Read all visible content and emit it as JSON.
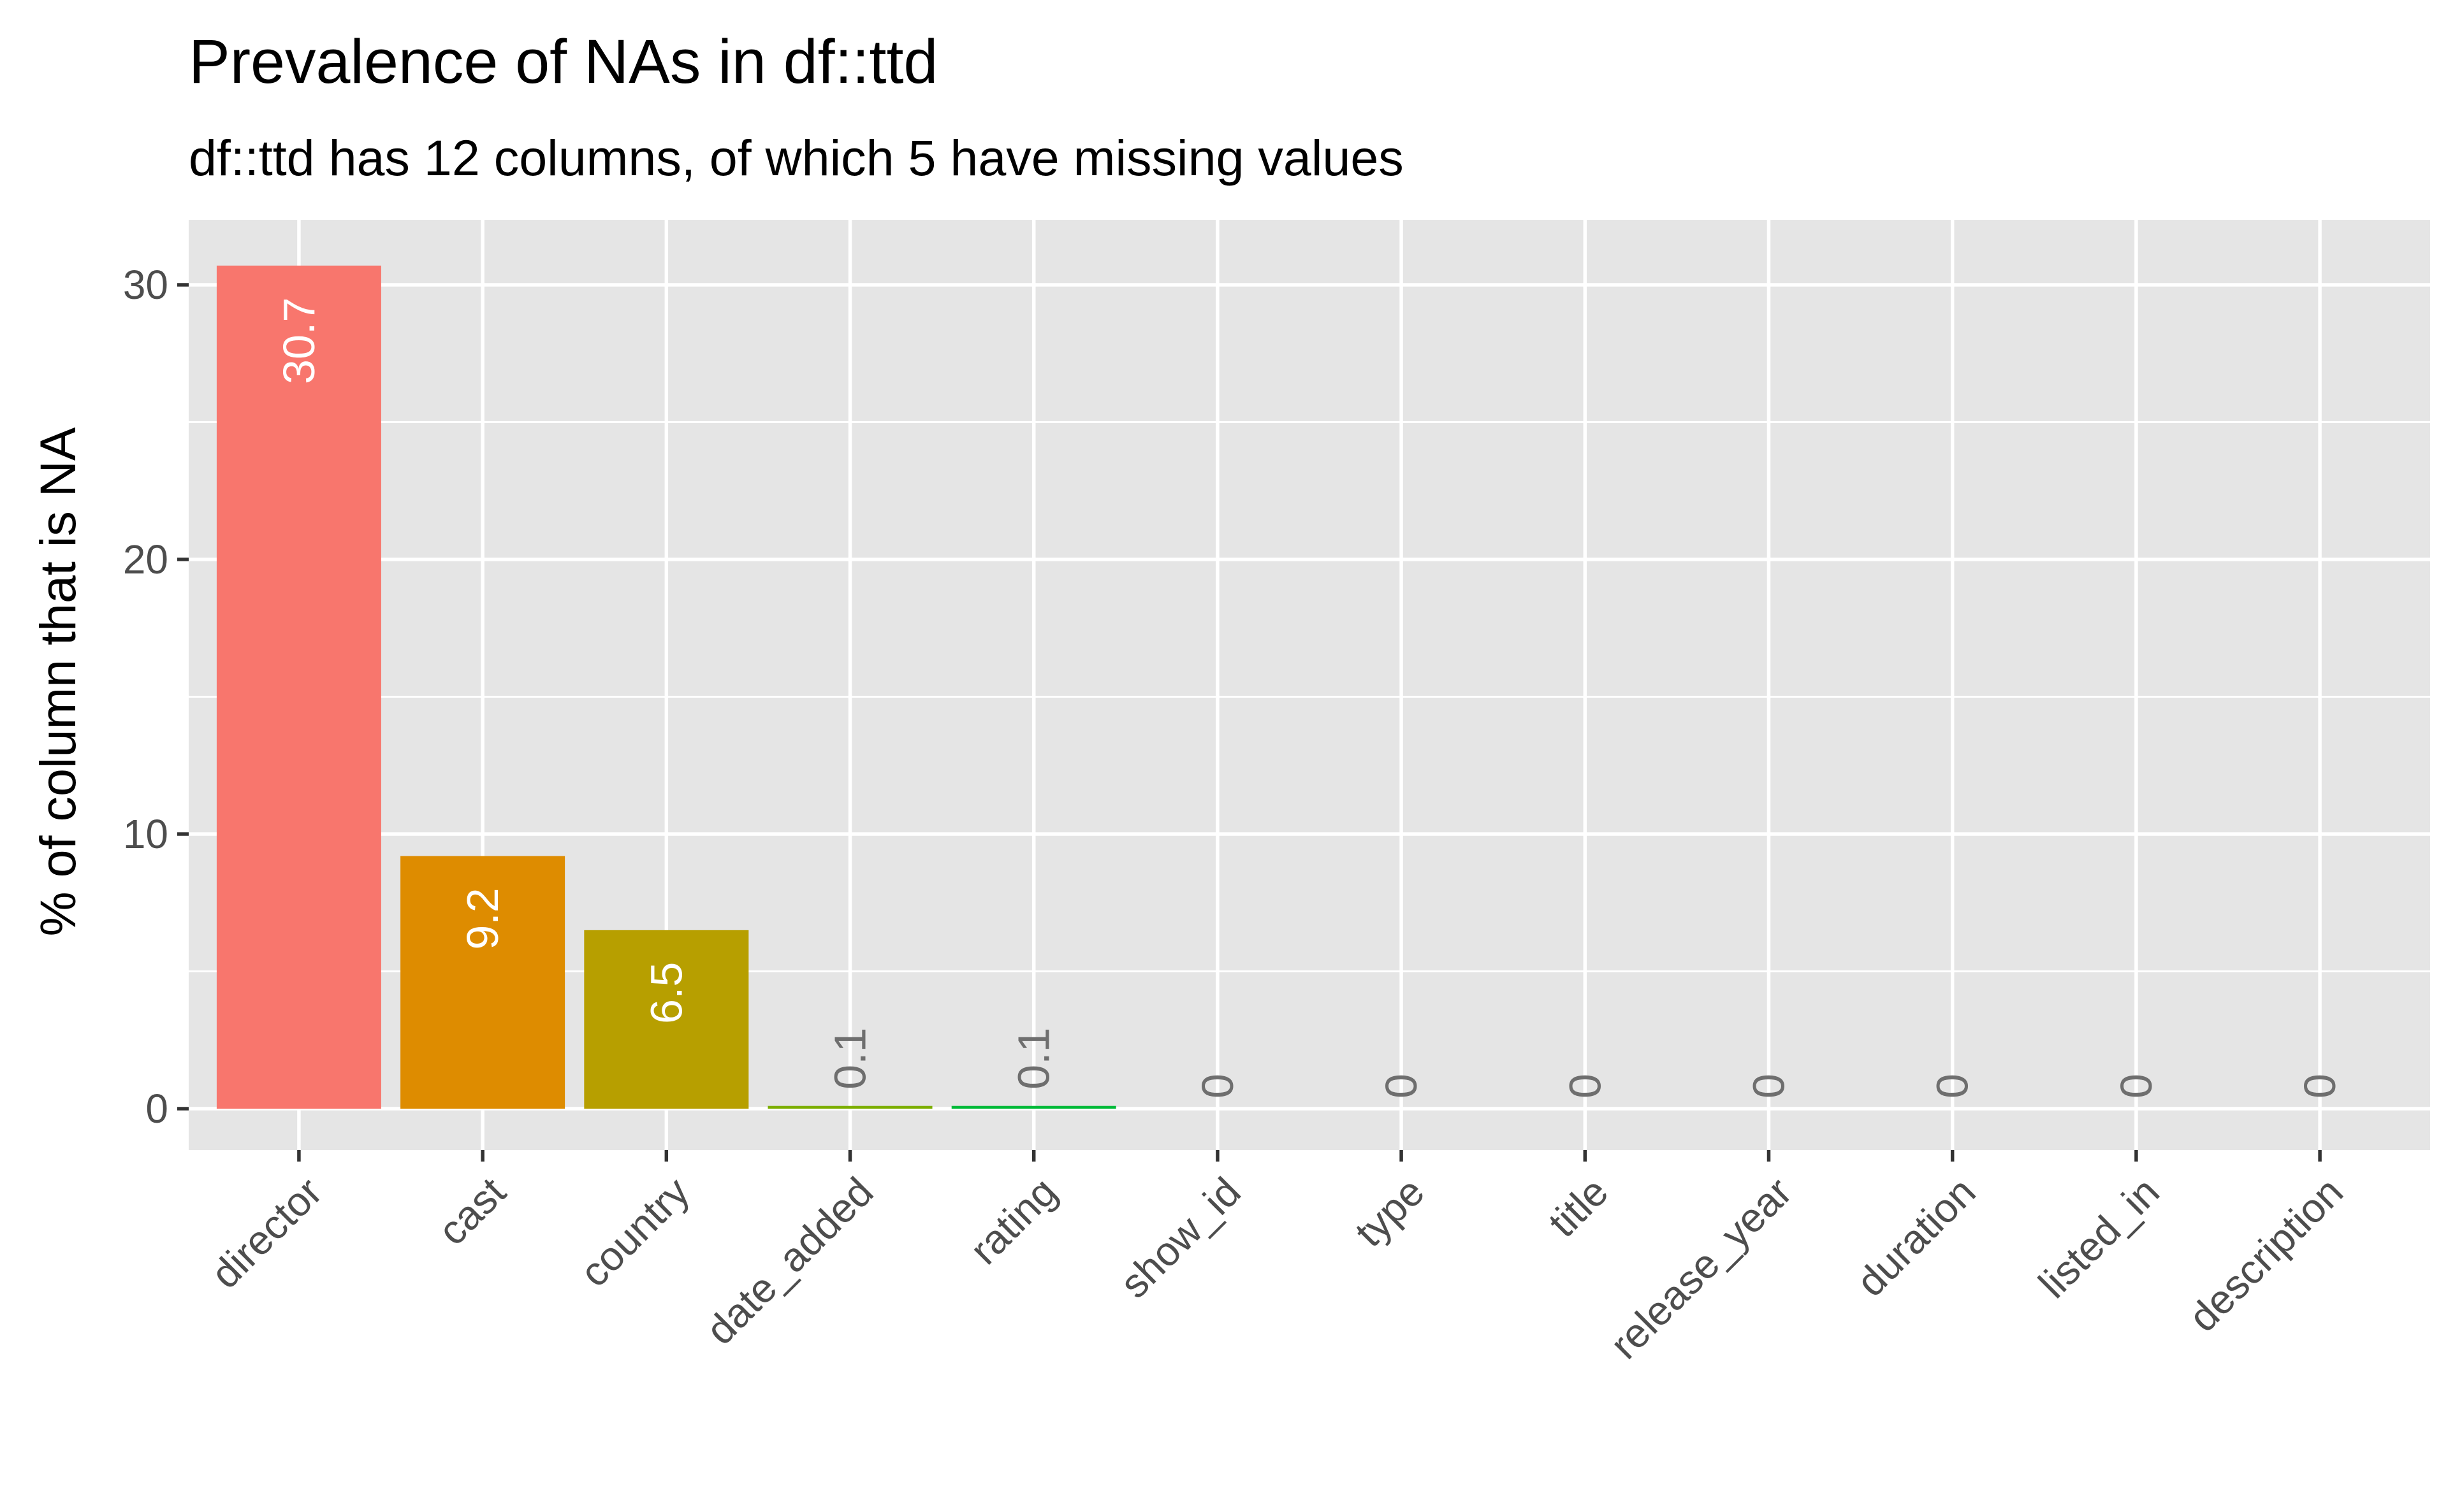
{
  "chart_data": {
    "type": "bar",
    "title": "Prevalence of NAs in df::ttd",
    "subtitle": "df::ttd has 12 columns, of which 5 have missing values",
    "xlabel": "",
    "ylabel": "% of column that is NA",
    "ylim": [
      -1.6,
      31.6
    ],
    "yticks": [
      0,
      10,
      20,
      30
    ],
    "grid": true,
    "legend": "none",
    "panel_background": "#E5E5E5",
    "grid_color": "#FFFFFF",
    "categories": [
      "director",
      "cast",
      "country",
      "date_added",
      "rating",
      "show_id",
      "type",
      "title",
      "release_year",
      "duration",
      "listed_in",
      "description"
    ],
    "values": [
      30.7,
      9.2,
      6.5,
      0.1,
      0.1,
      0,
      0,
      0,
      0,
      0,
      0,
      0
    ],
    "value_labels": [
      "30.7",
      "9.2",
      "6.5",
      "0.1",
      "0.1",
      "0",
      "0",
      "0",
      "0",
      "0",
      "0",
      "0"
    ],
    "colors": [
      "#F8766D",
      "#DE8C00",
      "#B79F00",
      "#7CAE00",
      "#00BA38",
      "#00C08B",
      "#00BFC4",
      "#00B4F0",
      "#619CFF",
      "#C77CFF",
      "#F564E3",
      "#FF64B0"
    ],
    "inside_label_color": "#FFFFFF",
    "outside_label_color": "#6E6E6E"
  }
}
